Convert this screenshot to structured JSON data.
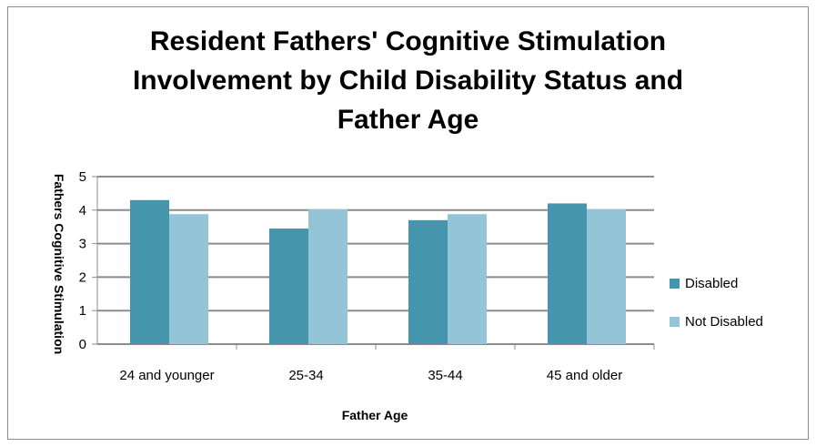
{
  "chart_data": {
    "type": "bar",
    "title": "Resident Fathers' Cognitive Stimulation\nInvolvement by Child Disability Status and\nFather Age",
    "xlabel": "Father Age",
    "ylabel": "Fathers Cognitive Stimulation",
    "categories": [
      "24 and younger",
      "25-34",
      "35-44",
      "45 and older"
    ],
    "series": [
      {
        "name": "Disabled",
        "values": [
          4.3,
          3.45,
          3.7,
          4.2
        ],
        "color": "#4596ac"
      },
      {
        "name": "Not Disabled",
        "values": [
          3.88,
          4.02,
          3.88,
          4.03
        ],
        "color": "#94c5d6"
      }
    ],
    "ylim": [
      0,
      5
    ],
    "yticks": [
      0,
      1,
      2,
      3,
      4,
      5
    ],
    "grid": true,
    "legend": "right"
  }
}
